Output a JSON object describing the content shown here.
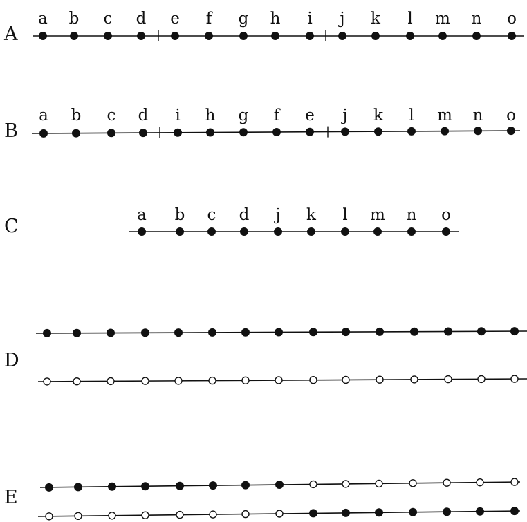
{
  "rows": [
    {
      "label": "A",
      "letters": [
        "a",
        "b",
        "c",
        "d",
        "e",
        "f",
        "g",
        "h",
        "i",
        "j",
        "k",
        "l",
        "m",
        "n",
        "o"
      ],
      "lines": [
        {
          "dots": [
            "filled",
            "filled",
            "filled",
            "filled",
            "filled",
            "filled",
            "filled",
            "filled",
            "filled",
            "filled",
            "filled",
            "filled",
            "filled",
            "filled",
            "filled"
          ]
        }
      ]
    },
    {
      "label": "B",
      "letters": [
        "a",
        "b",
        "c",
        "d",
        "i",
        "h",
        "g",
        "f",
        "e",
        "j",
        "k",
        "l",
        "m",
        "n",
        "o"
      ],
      "lines": [
        {
          "dots": [
            "filled",
            "filled",
            "filled",
            "filled",
            "filled",
            "filled",
            "filled",
            "filled",
            "filled",
            "filled",
            "filled",
            "filled",
            "filled",
            "filled",
            "filled"
          ]
        }
      ]
    },
    {
      "label": "C",
      "letters": [
        "a",
        "b",
        "c",
        "d",
        "j",
        "k",
        "l",
        "m",
        "n",
        "o"
      ],
      "lines": [
        {
          "dots": [
            "filled",
            "filled",
            "filled",
            "filled",
            "filled",
            "filled",
            "filled",
            "filled",
            "filled",
            "filled"
          ]
        }
      ]
    },
    {
      "label": "D",
      "letters": [],
      "lines": [
        {
          "dots": [
            "filled",
            "filled",
            "filled",
            "filled",
            "filled",
            "filled",
            "filled",
            "filled",
            "filled",
            "filled",
            "filled",
            "filled",
            "filled",
            "filled",
            "filled"
          ]
        },
        {
          "dots": [
            "open",
            "open",
            "open",
            "open",
            "open",
            "open",
            "open",
            "open",
            "open",
            "open",
            "open",
            "open",
            "open",
            "open",
            "open"
          ]
        }
      ]
    },
    {
      "label": "E",
      "letters": [],
      "lines": [
        {
          "dots": [
            "filled",
            "filled",
            "filled",
            "filled",
            "filled",
            "filled",
            "filled",
            "filled",
            "open",
            "open",
            "open",
            "open",
            "open",
            "open",
            "open"
          ]
        },
        {
          "dots": [
            "open",
            "open",
            "open",
            "open",
            "open",
            "open",
            "open",
            "open",
            "filled",
            "filled",
            "filled",
            "filled",
            "filled",
            "filled",
            "filled"
          ]
        }
      ]
    }
  ]
}
